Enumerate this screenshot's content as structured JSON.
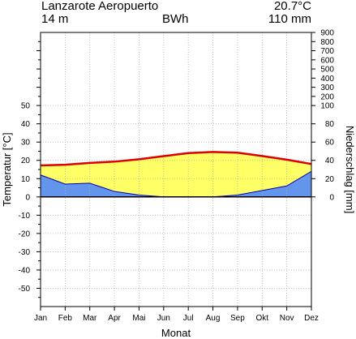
{
  "header": {
    "station": "Lanzarote Aeropuerto",
    "altitude": "14 m",
    "koeppen": "BWh",
    "mean_temp": "20.7°C",
    "annual_precip": "110 mm"
  },
  "chart_data": {
    "type": "line",
    "title": "",
    "xlabel": "Monat",
    "ylabel_left": "Temperatur [°C]",
    "ylabel_right": "Niederschlag [mm]",
    "categories": [
      "Jan",
      "Feb",
      "Mar",
      "Apr",
      "Mai",
      "Jun",
      "Jul",
      "Aug",
      "Sep",
      "Okt",
      "Nov",
      "Dez"
    ],
    "temp_ylim": [
      -60,
      90
    ],
    "temp_ticks": [
      -50,
      -40,
      -30,
      -20,
      -10,
      0,
      10,
      20,
      30,
      40,
      50
    ],
    "precip_ticks": [
      0,
      20,
      40,
      60,
      80,
      100,
      200,
      300,
      400,
      500,
      600,
      700,
      800,
      900
    ],
    "precip_scale_note": "2 mm per °C up to 100 mm, compressed above",
    "series": [
      {
        "name": "Temperatur",
        "values": [
          17.2,
          17.6,
          18.6,
          19.3,
          20.6,
          22.3,
          24.0,
          24.6,
          24.2,
          22.4,
          20.4,
          18.0
        ]
      },
      {
        "name": "Niederschlag",
        "values": [
          24,
          14,
          15,
          6,
          2,
          0,
          0,
          0,
          2,
          7,
          12,
          28
        ]
      }
    ],
    "colors": {
      "temperature": "#dd0000",
      "precipitation_fill": "#6495ed",
      "arid_fill": "#ffff66",
      "precip_line": "#0000aa",
      "grid": "#b0b0b0"
    },
    "grid": true
  }
}
